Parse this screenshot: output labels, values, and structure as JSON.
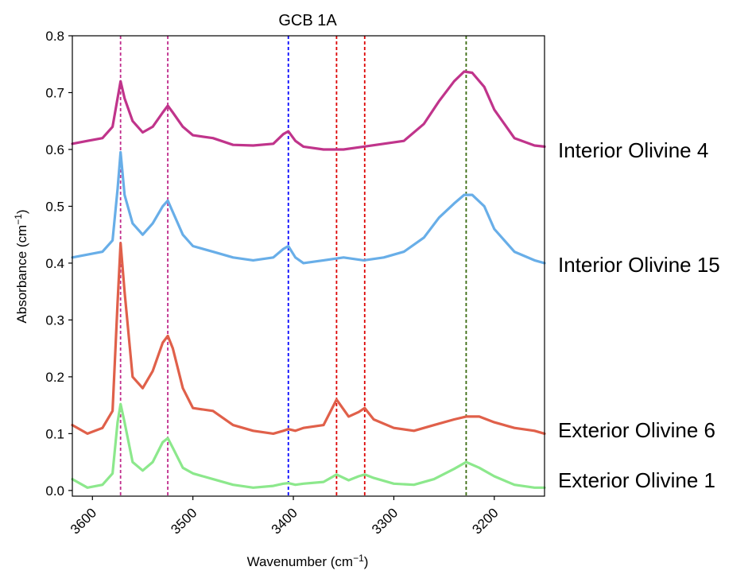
{
  "chart_data": {
    "type": "line",
    "title": "GCB 1A",
    "xlabel": "Wavenumber (cm",
    "xlabel_sup": "−1",
    "xlabel_end": ")",
    "ylabel": "Absorbance (cm",
    "ylabel_sup": "−1",
    "ylabel_end": ")",
    "xlim": [
      3620,
      3150
    ],
    "ylim": [
      -0.01,
      0.8
    ],
    "x_ticks": [
      3600,
      3500,
      3400,
      3300,
      3200
    ],
    "y_ticks": [
      0.0,
      0.1,
      0.2,
      0.3,
      0.4,
      0.5,
      0.6,
      0.7,
      0.8
    ],
    "y_tick_labels": [
      "0.0",
      "0.1",
      "0.2",
      "0.3",
      "0.4",
      "0.5",
      "0.6",
      "0.7",
      "0.8"
    ],
    "x_tick_labels": [
      "3600",
      "3500",
      "3400",
      "3300",
      "3200"
    ],
    "grid": false,
    "vlines": [
      {
        "x": 3572,
        "color": "#c02c8c"
      },
      {
        "x": 3525,
        "color": "#c02c8c"
      },
      {
        "x": 3405,
        "color": "#0000ff"
      },
      {
        "x": 3357,
        "color": "#dd0000"
      },
      {
        "x": 3329,
        "color": "#dd0000"
      },
      {
        "x": 3228,
        "color": "#3a6b10"
      }
    ],
    "series": [
      {
        "name": "Interior Olivine 4",
        "color": "#c0348b",
        "x": [
          3620,
          3605,
          3590,
          3580,
          3575,
          3572,
          3568,
          3560,
          3550,
          3540,
          3530,
          3525,
          3520,
          3510,
          3500,
          3480,
          3460,
          3440,
          3420,
          3410,
          3405,
          3398,
          3390,
          3370,
          3350,
          3330,
          3310,
          3290,
          3270,
          3255,
          3240,
          3230,
          3222,
          3210,
          3200,
          3180,
          3160,
          3150
        ],
        "y": [
          0.61,
          0.615,
          0.62,
          0.64,
          0.69,
          0.72,
          0.69,
          0.65,
          0.63,
          0.64,
          0.665,
          0.677,
          0.665,
          0.64,
          0.625,
          0.62,
          0.608,
          0.607,
          0.61,
          0.627,
          0.632,
          0.615,
          0.605,
          0.6,
          0.6,
          0.605,
          0.61,
          0.615,
          0.645,
          0.685,
          0.72,
          0.737,
          0.735,
          0.71,
          0.67,
          0.62,
          0.607,
          0.605
        ]
      },
      {
        "name": "Interior Olivine 15",
        "color": "#68aee8",
        "x": [
          3620,
          3605,
          3590,
          3580,
          3575,
          3572,
          3568,
          3560,
          3550,
          3540,
          3530,
          3525,
          3520,
          3510,
          3500,
          3480,
          3460,
          3440,
          3420,
          3410,
          3405,
          3398,
          3390,
          3370,
          3350,
          3330,
          3310,
          3290,
          3270,
          3255,
          3240,
          3230,
          3222,
          3210,
          3200,
          3180,
          3160,
          3150
        ],
        "y": [
          0.41,
          0.415,
          0.42,
          0.44,
          0.53,
          0.595,
          0.52,
          0.47,
          0.45,
          0.47,
          0.5,
          0.51,
          0.49,
          0.45,
          0.43,
          0.42,
          0.41,
          0.405,
          0.41,
          0.425,
          0.43,
          0.41,
          0.4,
          0.405,
          0.41,
          0.405,
          0.41,
          0.42,
          0.445,
          0.48,
          0.505,
          0.52,
          0.52,
          0.5,
          0.46,
          0.42,
          0.405,
          0.4
        ]
      },
      {
        "name": "Exterior Olivine 6",
        "color": "#e0604a",
        "x": [
          3620,
          3605,
          3590,
          3580,
          3575,
          3572,
          3568,
          3560,
          3550,
          3540,
          3530,
          3525,
          3520,
          3510,
          3500,
          3480,
          3460,
          3440,
          3420,
          3410,
          3405,
          3398,
          3390,
          3370,
          3357,
          3345,
          3335,
          3329,
          3320,
          3300,
          3280,
          3260,
          3240,
          3228,
          3215,
          3200,
          3180,
          3160,
          3150
        ],
        "y": [
          0.115,
          0.1,
          0.11,
          0.14,
          0.33,
          0.435,
          0.35,
          0.2,
          0.18,
          0.21,
          0.26,
          0.272,
          0.25,
          0.18,
          0.145,
          0.14,
          0.115,
          0.105,
          0.1,
          0.105,
          0.108,
          0.105,
          0.11,
          0.115,
          0.16,
          0.13,
          0.138,
          0.145,
          0.125,
          0.11,
          0.105,
          0.115,
          0.125,
          0.13,
          0.13,
          0.12,
          0.11,
          0.105,
          0.1
        ]
      },
      {
        "name": "Exterior Olivine 1",
        "color": "#8ce88c",
        "x": [
          3620,
          3605,
          3590,
          3580,
          3575,
          3572,
          3568,
          3560,
          3550,
          3540,
          3530,
          3525,
          3520,
          3510,
          3500,
          3480,
          3460,
          3440,
          3420,
          3410,
          3405,
          3398,
          3390,
          3370,
          3357,
          3345,
          3335,
          3329,
          3320,
          3300,
          3280,
          3260,
          3240,
          3228,
          3215,
          3200,
          3180,
          3160,
          3150
        ],
        "y": [
          0.02,
          0.005,
          0.01,
          0.03,
          0.12,
          0.152,
          0.12,
          0.05,
          0.035,
          0.05,
          0.085,
          0.092,
          0.075,
          0.04,
          0.03,
          0.02,
          0.01,
          0.005,
          0.008,
          0.012,
          0.013,
          0.01,
          0.012,
          0.015,
          0.028,
          0.018,
          0.025,
          0.028,
          0.022,
          0.012,
          0.01,
          0.02,
          0.038,
          0.05,
          0.04,
          0.025,
          0.01,
          0.005,
          0.005
        ]
      }
    ],
    "series_label_text": {
      "s0": "Interior Olivine 4",
      "s1": "Interior Olivine 15",
      "s2": "Exterior Olivine 6",
      "s3": "Exterior Olivine 1"
    }
  }
}
